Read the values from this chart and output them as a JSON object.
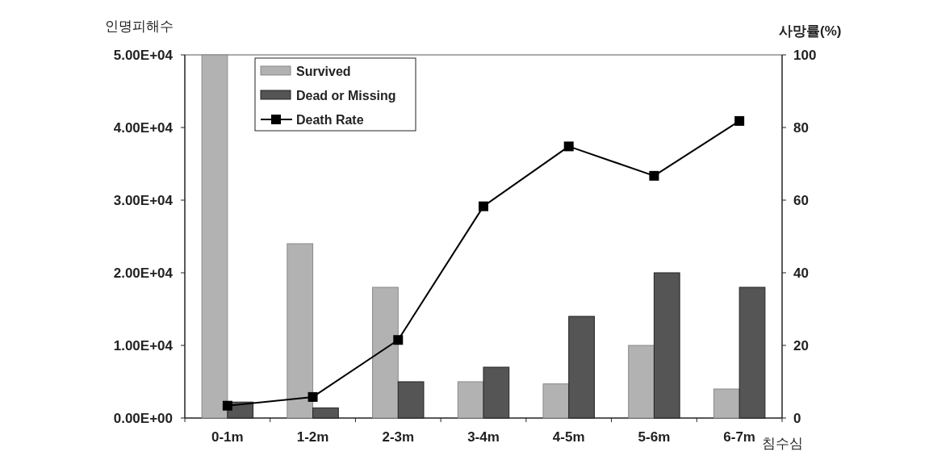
{
  "chart_data": {
    "type": "bar",
    "categories": [
      "0-1m",
      "1-2m",
      "2-3m",
      "3-4m",
      "4-5m",
      "5-6m",
      "6-7m"
    ],
    "series": [
      {
        "name": "Survived",
        "color": "#b2b2b2",
        "values": [
          50000,
          24000,
          18000,
          5000,
          4700,
          10000,
          4000
        ]
      },
      {
        "name": "Dead or Missing",
        "color": "#555555",
        "values": [
          2200,
          1400,
          5000,
          7000,
          14000,
          20000,
          18000
        ]
      },
      {
        "name": "Death Rate",
        "type": "line",
        "axis": "y2",
        "color": "#000000",
        "values": [
          3.4,
          5.8,
          21.5,
          58.3,
          74.8,
          66.7,
          81.8
        ]
      }
    ],
    "ylabel": "인명피해수",
    "y2label": "사망률(%)",
    "xlabel": "침수심",
    "ylim": [
      0,
      50000
    ],
    "yticks": [
      {
        "value": 0,
        "label": "0.00E+00"
      },
      {
        "value": 10000,
        "label": "1.00E+04"
      },
      {
        "value": 20000,
        "label": "2.00E+04"
      },
      {
        "value": 30000,
        "label": "3.00E+04"
      },
      {
        "value": 40000,
        "label": "4.00E+04"
      },
      {
        "value": 50000,
        "label": "5.00E+04"
      }
    ],
    "y2lim": [
      0,
      100
    ],
    "y2ticks": [
      0,
      20,
      40,
      60,
      80,
      100
    ],
    "legend": "top left",
    "marker": "square"
  }
}
